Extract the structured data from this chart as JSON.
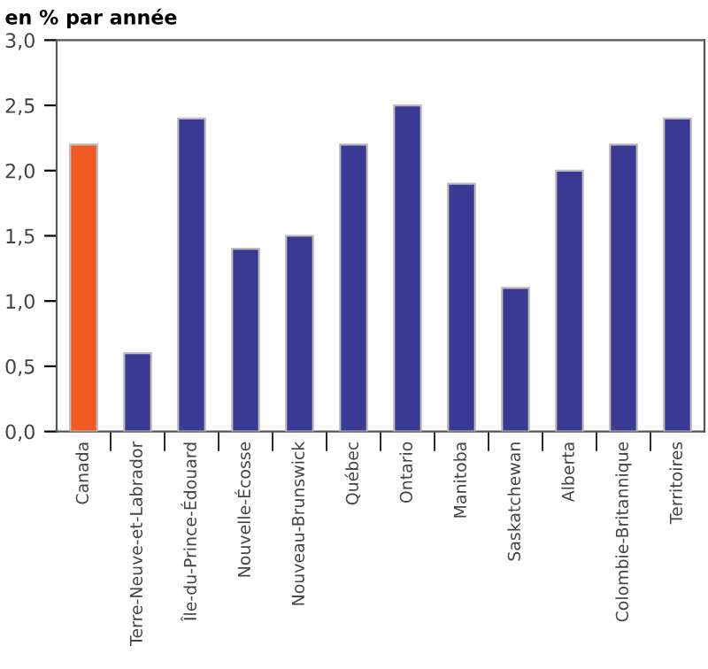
{
  "chart_data": {
    "type": "bar",
    "ylabel": "en % par année",
    "categories": [
      "Canada",
      "Terre-Neuve-et-Labrador",
      "Île-du-Prince-Édouard",
      "Nouvelle-Écosse",
      "Nouveau-Brunswick",
      "Québec",
      "Ontario",
      "Manitoba",
      "Saskatchewan",
      "Alberta",
      "Colombie-Britannique",
      "Territoires"
    ],
    "values": [
      2.2,
      0.6,
      2.4,
      1.4,
      1.5,
      2.2,
      2.5,
      1.9,
      1.1,
      2.0,
      2.2,
      2.4
    ],
    "colors": [
      "#f15a22",
      "#3a3a94",
      "#3a3a94",
      "#3a3a94",
      "#3a3a94",
      "#3a3a94",
      "#3a3a94",
      "#3a3a94",
      "#3a3a94",
      "#3a3a94",
      "#3a3a94",
      "#3a3a94"
    ],
    "ylim": [
      0,
      3
    ],
    "yticks": [
      {
        "value": 0,
        "label": "0,0"
      },
      {
        "value": 0.5,
        "label": "0,5"
      },
      {
        "value": 1,
        "label": "1,0"
      },
      {
        "value": 1.5,
        "label": "1,5"
      },
      {
        "value": 2,
        "label": "2,0"
      },
      {
        "value": 2.5,
        "label": "2,5"
      },
      {
        "value": 3,
        "label": "3,0"
      }
    ],
    "grid": false
  }
}
